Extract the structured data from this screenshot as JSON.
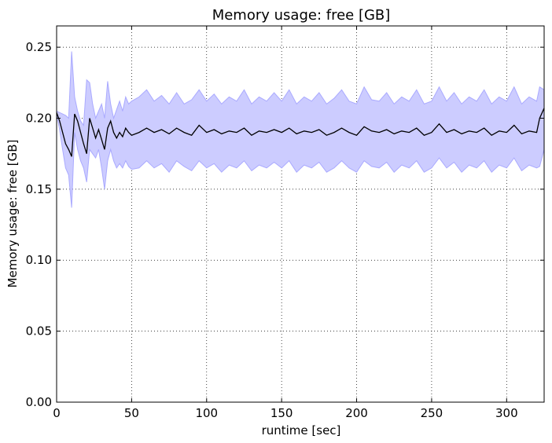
{
  "chart_data": {
    "type": "line",
    "title": "Memory usage: free [GB]",
    "xlabel": "runtime [sec]",
    "ylabel": "Memory usage: free [GB]",
    "xlim": [
      0,
      325
    ],
    "ylim": [
      0,
      0.265
    ],
    "xticks": [
      0,
      50,
      100,
      150,
      200,
      250,
      300
    ],
    "yticks": [
      0.0,
      0.05,
      0.1,
      0.15,
      0.2,
      0.25
    ],
    "ytick_labels": [
      "0.00",
      "0.05",
      "0.10",
      "0.15",
      "0.20",
      "0.25"
    ],
    "grid": true,
    "colors": {
      "mean_line": "#000000",
      "band_fill": "#ccccff",
      "band_edge": "#aaaaff"
    },
    "series": [
      {
        "x": [
          0,
          2,
          4,
          6,
          8,
          10,
          12,
          14,
          16,
          18,
          20,
          22,
          24,
          26,
          28,
          30,
          32,
          34,
          36,
          38,
          40,
          42,
          44,
          46,
          48,
          50,
          55,
          60,
          65,
          70,
          75,
          80,
          85,
          90,
          95,
          100,
          105,
          110,
          115,
          120,
          125,
          130,
          135,
          140,
          145,
          150,
          155,
          160,
          165,
          170,
          175,
          180,
          185,
          190,
          195,
          200,
          205,
          210,
          215,
          220,
          225,
          230,
          235,
          240,
          245,
          250,
          255,
          260,
          265,
          270,
          275,
          280,
          285,
          290,
          295,
          300,
          305,
          310,
          315,
          320,
          322,
          325
        ],
        "mean": [
          0.204,
          0.198,
          0.19,
          0.182,
          0.178,
          0.173,
          0.203,
          0.198,
          0.19,
          0.182,
          0.175,
          0.2,
          0.193,
          0.186,
          0.192,
          0.185,
          0.178,
          0.193,
          0.198,
          0.19,
          0.186,
          0.19,
          0.187,
          0.193,
          0.19,
          0.188,
          0.19,
          0.193,
          0.19,
          0.192,
          0.189,
          0.193,
          0.19,
          0.188,
          0.195,
          0.19,
          0.192,
          0.189,
          0.191,
          0.19,
          0.193,
          0.188,
          0.191,
          0.19,
          0.192,
          0.19,
          0.193,
          0.189,
          0.191,
          0.19,
          0.192,
          0.188,
          0.19,
          0.193,
          0.19,
          0.188,
          0.194,
          0.191,
          0.19,
          0.192,
          0.189,
          0.191,
          0.19,
          0.193,
          0.188,
          0.19,
          0.196,
          0.19,
          0.192,
          0.189,
          0.191,
          0.19,
          0.193,
          0.188,
          0.191,
          0.19,
          0.195,
          0.189,
          0.191,
          0.19,
          0.2,
          0.207
        ],
        "upper": [
          0.205,
          0.204,
          0.203,
          0.202,
          0.2,
          0.247,
          0.215,
          0.205,
          0.198,
          0.195,
          0.227,
          0.225,
          0.21,
          0.2,
          0.205,
          0.21,
          0.2,
          0.226,
          0.21,
          0.2,
          0.206,
          0.212,
          0.205,
          0.215,
          0.21,
          0.212,
          0.215,
          0.22,
          0.212,
          0.216,
          0.21,
          0.218,
          0.21,
          0.213,
          0.22,
          0.212,
          0.217,
          0.21,
          0.215,
          0.212,
          0.22,
          0.21,
          0.215,
          0.212,
          0.218,
          0.212,
          0.22,
          0.21,
          0.215,
          0.212,
          0.218,
          0.21,
          0.214,
          0.22,
          0.212,
          0.21,
          0.222,
          0.213,
          0.212,
          0.218,
          0.21,
          0.215,
          0.212,
          0.22,
          0.21,
          0.212,
          0.222,
          0.212,
          0.218,
          0.21,
          0.215,
          0.212,
          0.22,
          0.21,
          0.215,
          0.212,
          0.222,
          0.21,
          0.215,
          0.212,
          0.222,
          0.22
        ],
        "lower": [
          0.203,
          0.192,
          0.178,
          0.165,
          0.16,
          0.137,
          0.19,
          0.178,
          0.17,
          0.165,
          0.155,
          0.178,
          0.175,
          0.172,
          0.178,
          0.165,
          0.15,
          0.17,
          0.178,
          0.17,
          0.165,
          0.168,
          0.165,
          0.17,
          0.166,
          0.164,
          0.165,
          0.17,
          0.165,
          0.168,
          0.162,
          0.17,
          0.166,
          0.163,
          0.17,
          0.165,
          0.168,
          0.162,
          0.167,
          0.165,
          0.17,
          0.163,
          0.167,
          0.165,
          0.169,
          0.165,
          0.17,
          0.162,
          0.167,
          0.165,
          0.169,
          0.162,
          0.165,
          0.17,
          0.165,
          0.162,
          0.17,
          0.166,
          0.165,
          0.169,
          0.162,
          0.167,
          0.165,
          0.17,
          0.162,
          0.165,
          0.172,
          0.165,
          0.169,
          0.162,
          0.167,
          0.165,
          0.17,
          0.162,
          0.167,
          0.165,
          0.172,
          0.163,
          0.167,
          0.165,
          0.166,
          0.178
        ]
      }
    ]
  }
}
